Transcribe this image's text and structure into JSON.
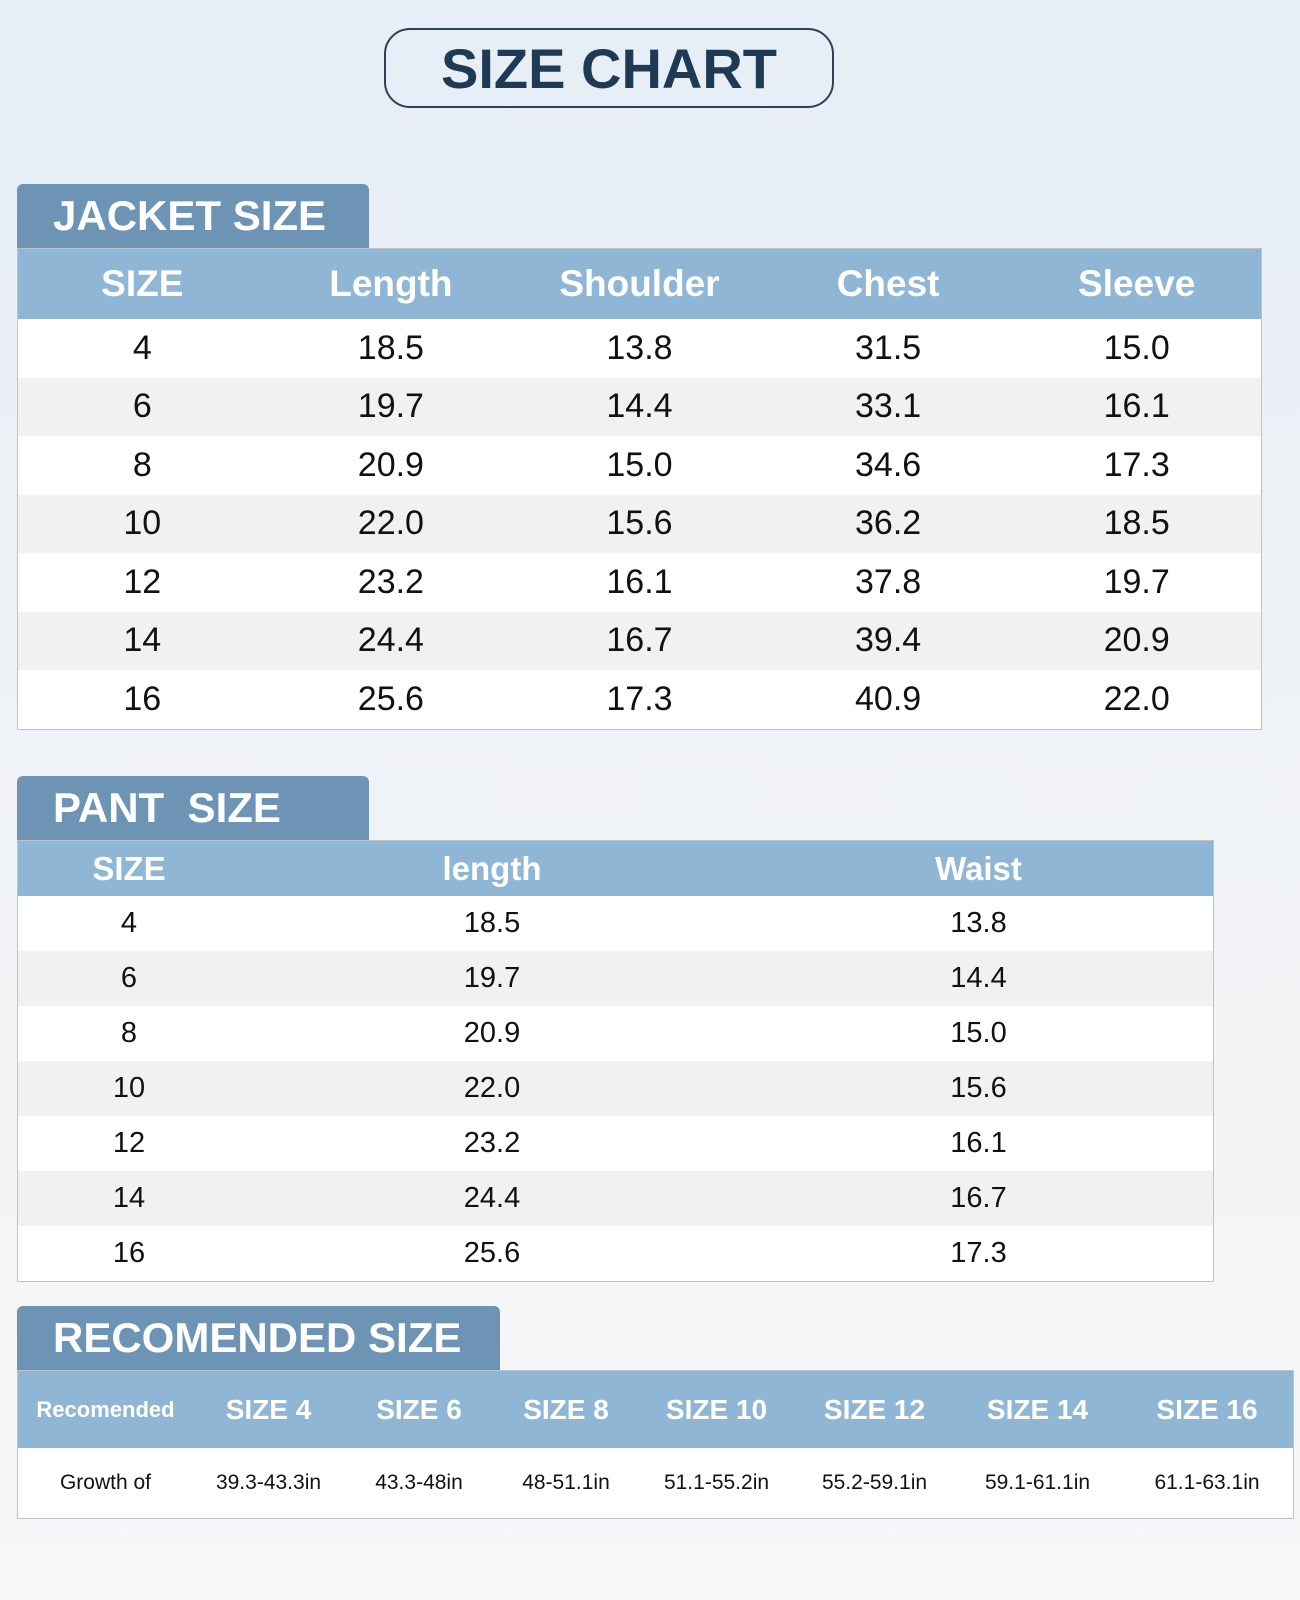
{
  "header": {
    "title": "SIZE CHART"
  },
  "jacket": {
    "title": "JACKET SIZE",
    "columns": [
      "SIZE",
      "Length",
      "Shoulder",
      "Chest",
      "Sleeve"
    ],
    "rows": [
      [
        "4",
        "18.5",
        "13.8",
        "31.5",
        "15.0"
      ],
      [
        "6",
        "19.7",
        "14.4",
        "33.1",
        "16.1"
      ],
      [
        "8",
        "20.9",
        "15.0",
        "34.6",
        "17.3"
      ],
      [
        "10",
        "22.0",
        "15.6",
        "36.2",
        "18.5"
      ],
      [
        "12",
        "23.2",
        "16.1",
        "37.8",
        "19.7"
      ],
      [
        "14",
        "24.4",
        "16.7",
        "39.4",
        "20.9"
      ],
      [
        "16",
        "25.6",
        "17.3",
        "40.9",
        "22.0"
      ]
    ]
  },
  "pant": {
    "title": "PANT  SIZE",
    "columns": [
      "SIZE",
      "length",
      "Waist"
    ],
    "rows": [
      [
        "4",
        "18.5",
        "13.8"
      ],
      [
        "6",
        "19.7",
        "14.4"
      ],
      [
        "8",
        "20.9",
        "15.0"
      ],
      [
        "10",
        "22.0",
        "15.6"
      ],
      [
        "12",
        "23.2",
        "16.1"
      ],
      [
        "14",
        "24.4",
        "16.7"
      ],
      [
        "16",
        "25.6",
        "17.3"
      ]
    ]
  },
  "recommended": {
    "title": "RECOMENDED SIZE",
    "columns": [
      "Recomended",
      "SIZE 4",
      "SIZE 6",
      "SIZE 8",
      "SIZE 10",
      "SIZE 12",
      "SIZE 14",
      "SIZE 16"
    ],
    "rows": [
      [
        "Growth of",
        "39.3-43.3in",
        "43.3-48in",
        "48-51.1in",
        "51.1-55.2in",
        "55.2-59.1in",
        "59.1-61.1in",
        "61.1-63.1in"
      ]
    ]
  }
}
